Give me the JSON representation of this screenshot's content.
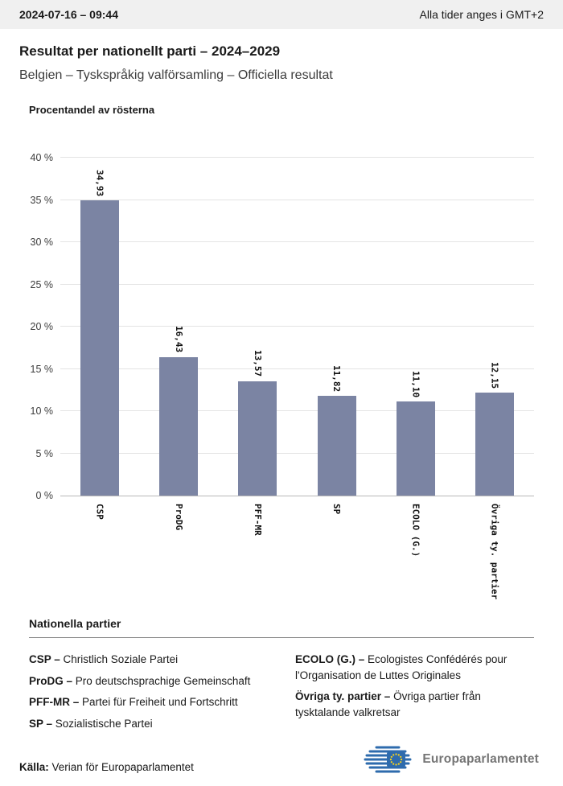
{
  "header": {
    "datetime": "2024-07-16 – 09:44",
    "timezone_note": "Alla tider anges i GMT+2"
  },
  "title": "Resultat per nationellt parti – 2024–2029",
  "subtitle": "Belgien – Tyskspråkig valförsamling – Officiella resultat",
  "chart_data": {
    "type": "bar",
    "title": "Procentandel av rösterna",
    "categories": [
      "CSP",
      "ProDG",
      "PFF-MR",
      "SP",
      "ECOLO (G.)",
      "Övriga ty. partier"
    ],
    "values": [
      34.93,
      16.43,
      13.57,
      11.82,
      11.1,
      12.15
    ],
    "value_labels": [
      "34,93",
      "16,43",
      "13,57",
      "11,82",
      "11,10",
      "12,15"
    ],
    "xlabel": "",
    "ylabel": "Procentandel av rösterna",
    "ylim": [
      0,
      40
    ],
    "ytick_step": 5,
    "ytick_labels": [
      "0 %",
      "5 %",
      "10 %",
      "15 %",
      "20 %",
      "25 %",
      "30 %",
      "35 %",
      "40 %"
    ],
    "grid": true,
    "legend_position": "none"
  },
  "legend": {
    "heading": "Nationella partier",
    "columns": [
      [
        {
          "abbr": "CSP –",
          "full": "Christlich Soziale Partei"
        },
        {
          "abbr": "ProDG –",
          "full": "Pro deutschsprachige Gemeinschaft"
        },
        {
          "abbr": "PFF-MR –",
          "full": "Partei für Freiheit und Fortschritt"
        },
        {
          "abbr": "SP –",
          "full": "Sozialistische Partei"
        }
      ],
      [
        {
          "abbr": "ECOLO (G.) –",
          "full": "Ecologistes Confédérés pour l'Organisation de Luttes Originales"
        },
        {
          "abbr": "Övriga ty. partier –",
          "full": "Övriga partier från tysktalande valkretsar"
        }
      ]
    ]
  },
  "footer": {
    "source_label": "Källa:",
    "source_text": " Verian för Europaparlamentet",
    "logo_text": "Europaparlamentet"
  },
  "colors": {
    "bar": "#7b84a3",
    "header_bg": "#f0f0f0",
    "gridline": "#e4e4e4",
    "logo_blue": "#2e6bad",
    "star_yellow": "#ffd617"
  },
  "icons": {
    "logo": "europarl-logo"
  }
}
